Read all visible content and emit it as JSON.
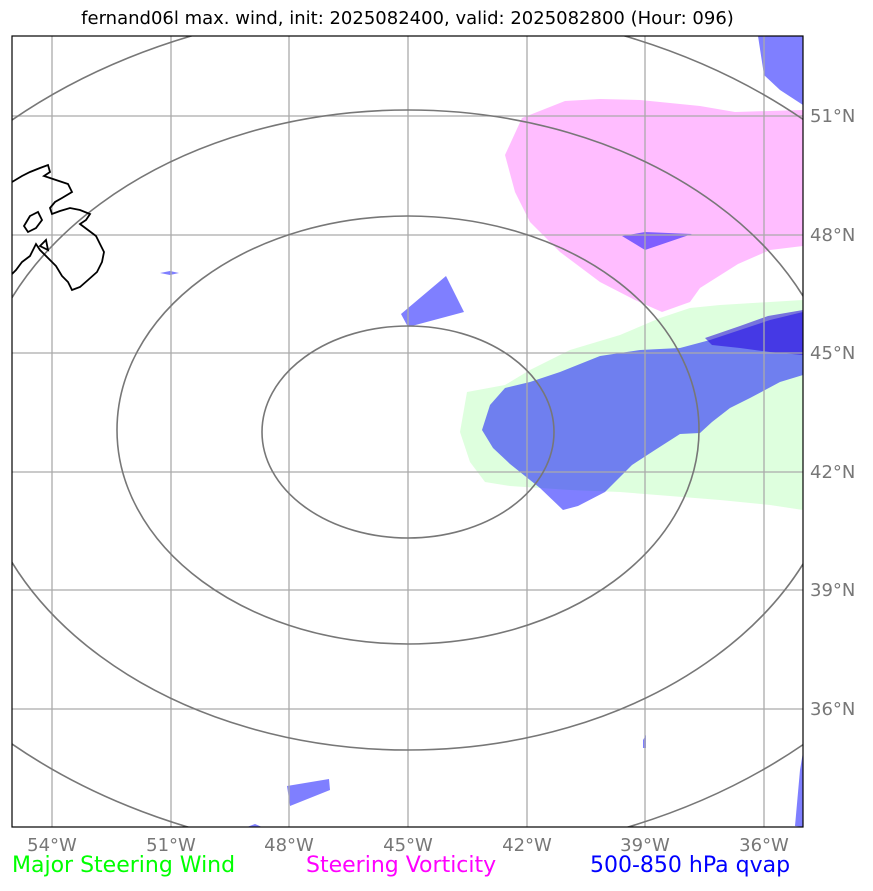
{
  "title": "fernand06l max. wind, init: 2025082400, valid: 2025082800 (Hour: 096)",
  "map": {
    "lon_labels": [
      "54°W",
      "51°W",
      "48°W",
      "45°W",
      "42°W",
      "39°W",
      "36°W"
    ],
    "lat_labels": [
      "51°N",
      "48°N",
      "45°N",
      "42°N",
      "39°N",
      "36°N"
    ],
    "colors": {
      "steering_wind": "#ccffcc",
      "steering_vorticity": "#ff99ff",
      "qvap": "#0000ff",
      "range_rings": "#777777",
      "gridlines": "#aaaaaa",
      "coastline": "#000000"
    }
  },
  "legend": {
    "wind": {
      "label": "Major Steering Wind",
      "color": "#00ff00"
    },
    "vorticity": {
      "label": "Steering Vorticity",
      "color": "#ff00ff"
    },
    "qvap": {
      "label": "500-850 hPa qvap",
      "color": "#0000ff"
    }
  }
}
